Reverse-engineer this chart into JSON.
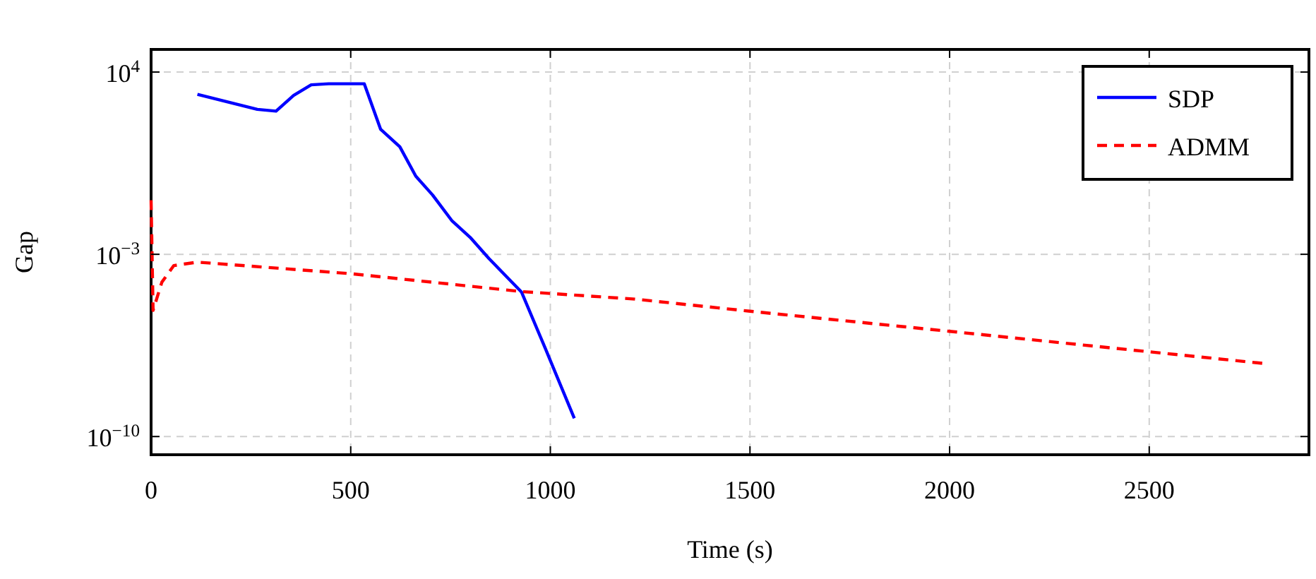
{
  "chart_data": {
    "type": "line",
    "xlabel": "Time (s)",
    "ylabel": "Gap",
    "log": "y",
    "grid": true,
    "legend": "top right",
    "xlim": [
      0,
      2900
    ],
    "xticks": [
      0,
      500,
      1000,
      1500,
      2000,
      2500
    ],
    "ylim": [
      2e-11,
      74000
    ],
    "yticks": [
      {
        "value": 10000,
        "label": "10$^{4}$"
      },
      {
        "value": 0.001,
        "label": "10$^{−3}$"
      },
      {
        "value": 1e-10,
        "label": "10$^{−10}$"
      }
    ],
    "series": [
      {
        "name": "SDP",
        "color": "#0000ff",
        "line_style": "solid",
        "x": [
          116,
          266,
          313,
          357,
          401,
          445,
          534,
          575,
          623,
          663,
          705,
          754,
          799,
          846,
          928,
          987,
          1060
        ],
        "values": [
          1400,
          370,
          316,
          1260,
          3240,
          3550,
          3550,
          63,
          13.5,
          1,
          0.19,
          0.019,
          0.0045,
          0.00069,
          3.5e-05,
          2.5e-07,
          5e-10
        ]
      },
      {
        "name": "ADMM",
        "color": "#ff0000",
        "line_style": "dashed",
        "x": [
          0,
          5,
          27,
          57,
          116,
          500,
          928,
          1212,
          1500,
          2000,
          2500,
          2783
        ],
        "values": [
          0.12,
          7e-06,
          8.5e-05,
          0.00037,
          0.0005,
          0.00018,
          3.7e-05,
          1.9e-05,
          6.5e-06,
          1.1e-06,
          1.8e-07,
          6.5e-08
        ]
      }
    ]
  }
}
